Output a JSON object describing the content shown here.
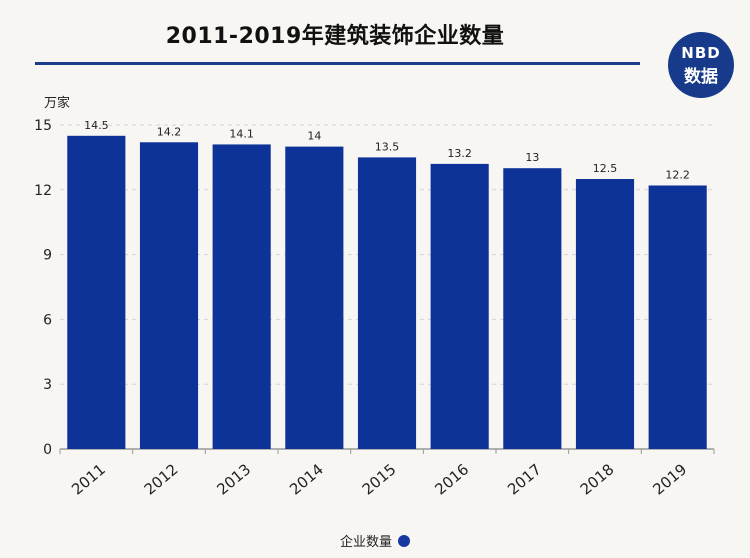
{
  "chart_data": {
    "type": "bar",
    "title": "2011-2019年建筑装饰企业数量",
    "ylabel": "万家",
    "categories": [
      "2011",
      "2012",
      "2013",
      "2014",
      "2015",
      "2016",
      "2017",
      "2018",
      "2019"
    ],
    "series": [
      {
        "name": "企业数量",
        "values": [
          14.5,
          14.2,
          14.1,
          14,
          13.5,
          13.2,
          13,
          12.5,
          12.2
        ]
      }
    ],
    "data_labels": [
      "14.5",
      "14.2",
      "14.1",
      "14",
      "13.5",
      "13.2",
      "13",
      "12.5",
      "12.2"
    ],
    "ylim": [
      0,
      15
    ],
    "yticks": [
      0,
      3,
      6,
      9,
      12,
      15
    ],
    "grid": true,
    "legend_position": "bottom",
    "bar_color": "#0d3399"
  },
  "branding": {
    "logo_line1": "NBD",
    "logo_line2": "数据"
  },
  "colors": {
    "title_rule": "#1f3b8c",
    "logo_bg": "#173a8a"
  }
}
